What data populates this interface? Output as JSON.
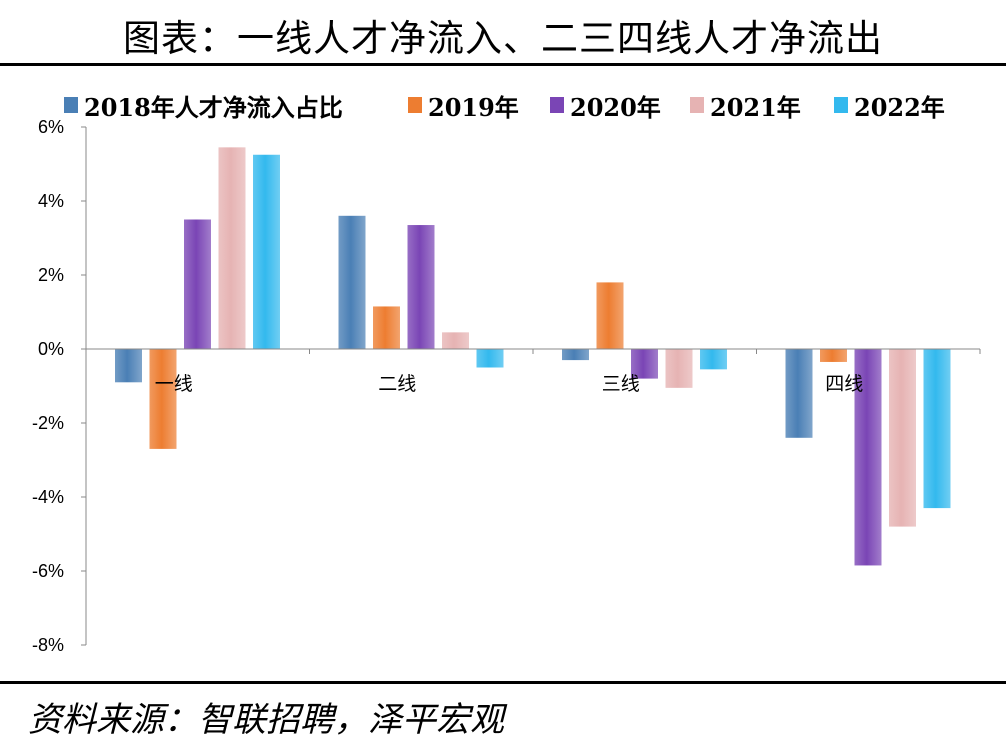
{
  "page": {
    "title": "图表：一线人才净流入、二三四线人才净流出",
    "source": "资料来源：智联招聘，泽平宏观"
  },
  "chart_data": {
    "type": "bar",
    "categories": [
      "一线",
      "二线",
      "三线",
      "四线"
    ],
    "series": [
      {
        "name": "2018年人才净流入占比",
        "values": [
          -0.9,
          3.6,
          -0.3,
          -2.4
        ],
        "color": "#4a7fb5"
      },
      {
        "name": "2019年",
        "values": [
          -2.7,
          1.15,
          1.8,
          -0.35
        ],
        "color": "#ed7d31"
      },
      {
        "name": "2020年",
        "values": [
          3.5,
          3.35,
          -0.8,
          -5.85
        ],
        "color": "#7a45b5"
      },
      {
        "name": "2021年",
        "values": [
          5.45,
          0.45,
          -1.05,
          -4.8
        ],
        "color": "#e6b3b3"
      },
      {
        "name": "2022年",
        "values": [
          5.25,
          -0.5,
          -0.55,
          -4.3
        ],
        "color": "#33b9ee"
      }
    ],
    "yticks": [
      "6%",
      "4%",
      "2%",
      "0%",
      "-2%",
      "-4%",
      "-6%",
      "-8%"
    ],
    "ylim": [
      -8,
      6
    ],
    "title": "图表：一线人才净流入、二三四线人才净流出",
    "xlabel": "",
    "ylabel": "",
    "legend": "top"
  }
}
